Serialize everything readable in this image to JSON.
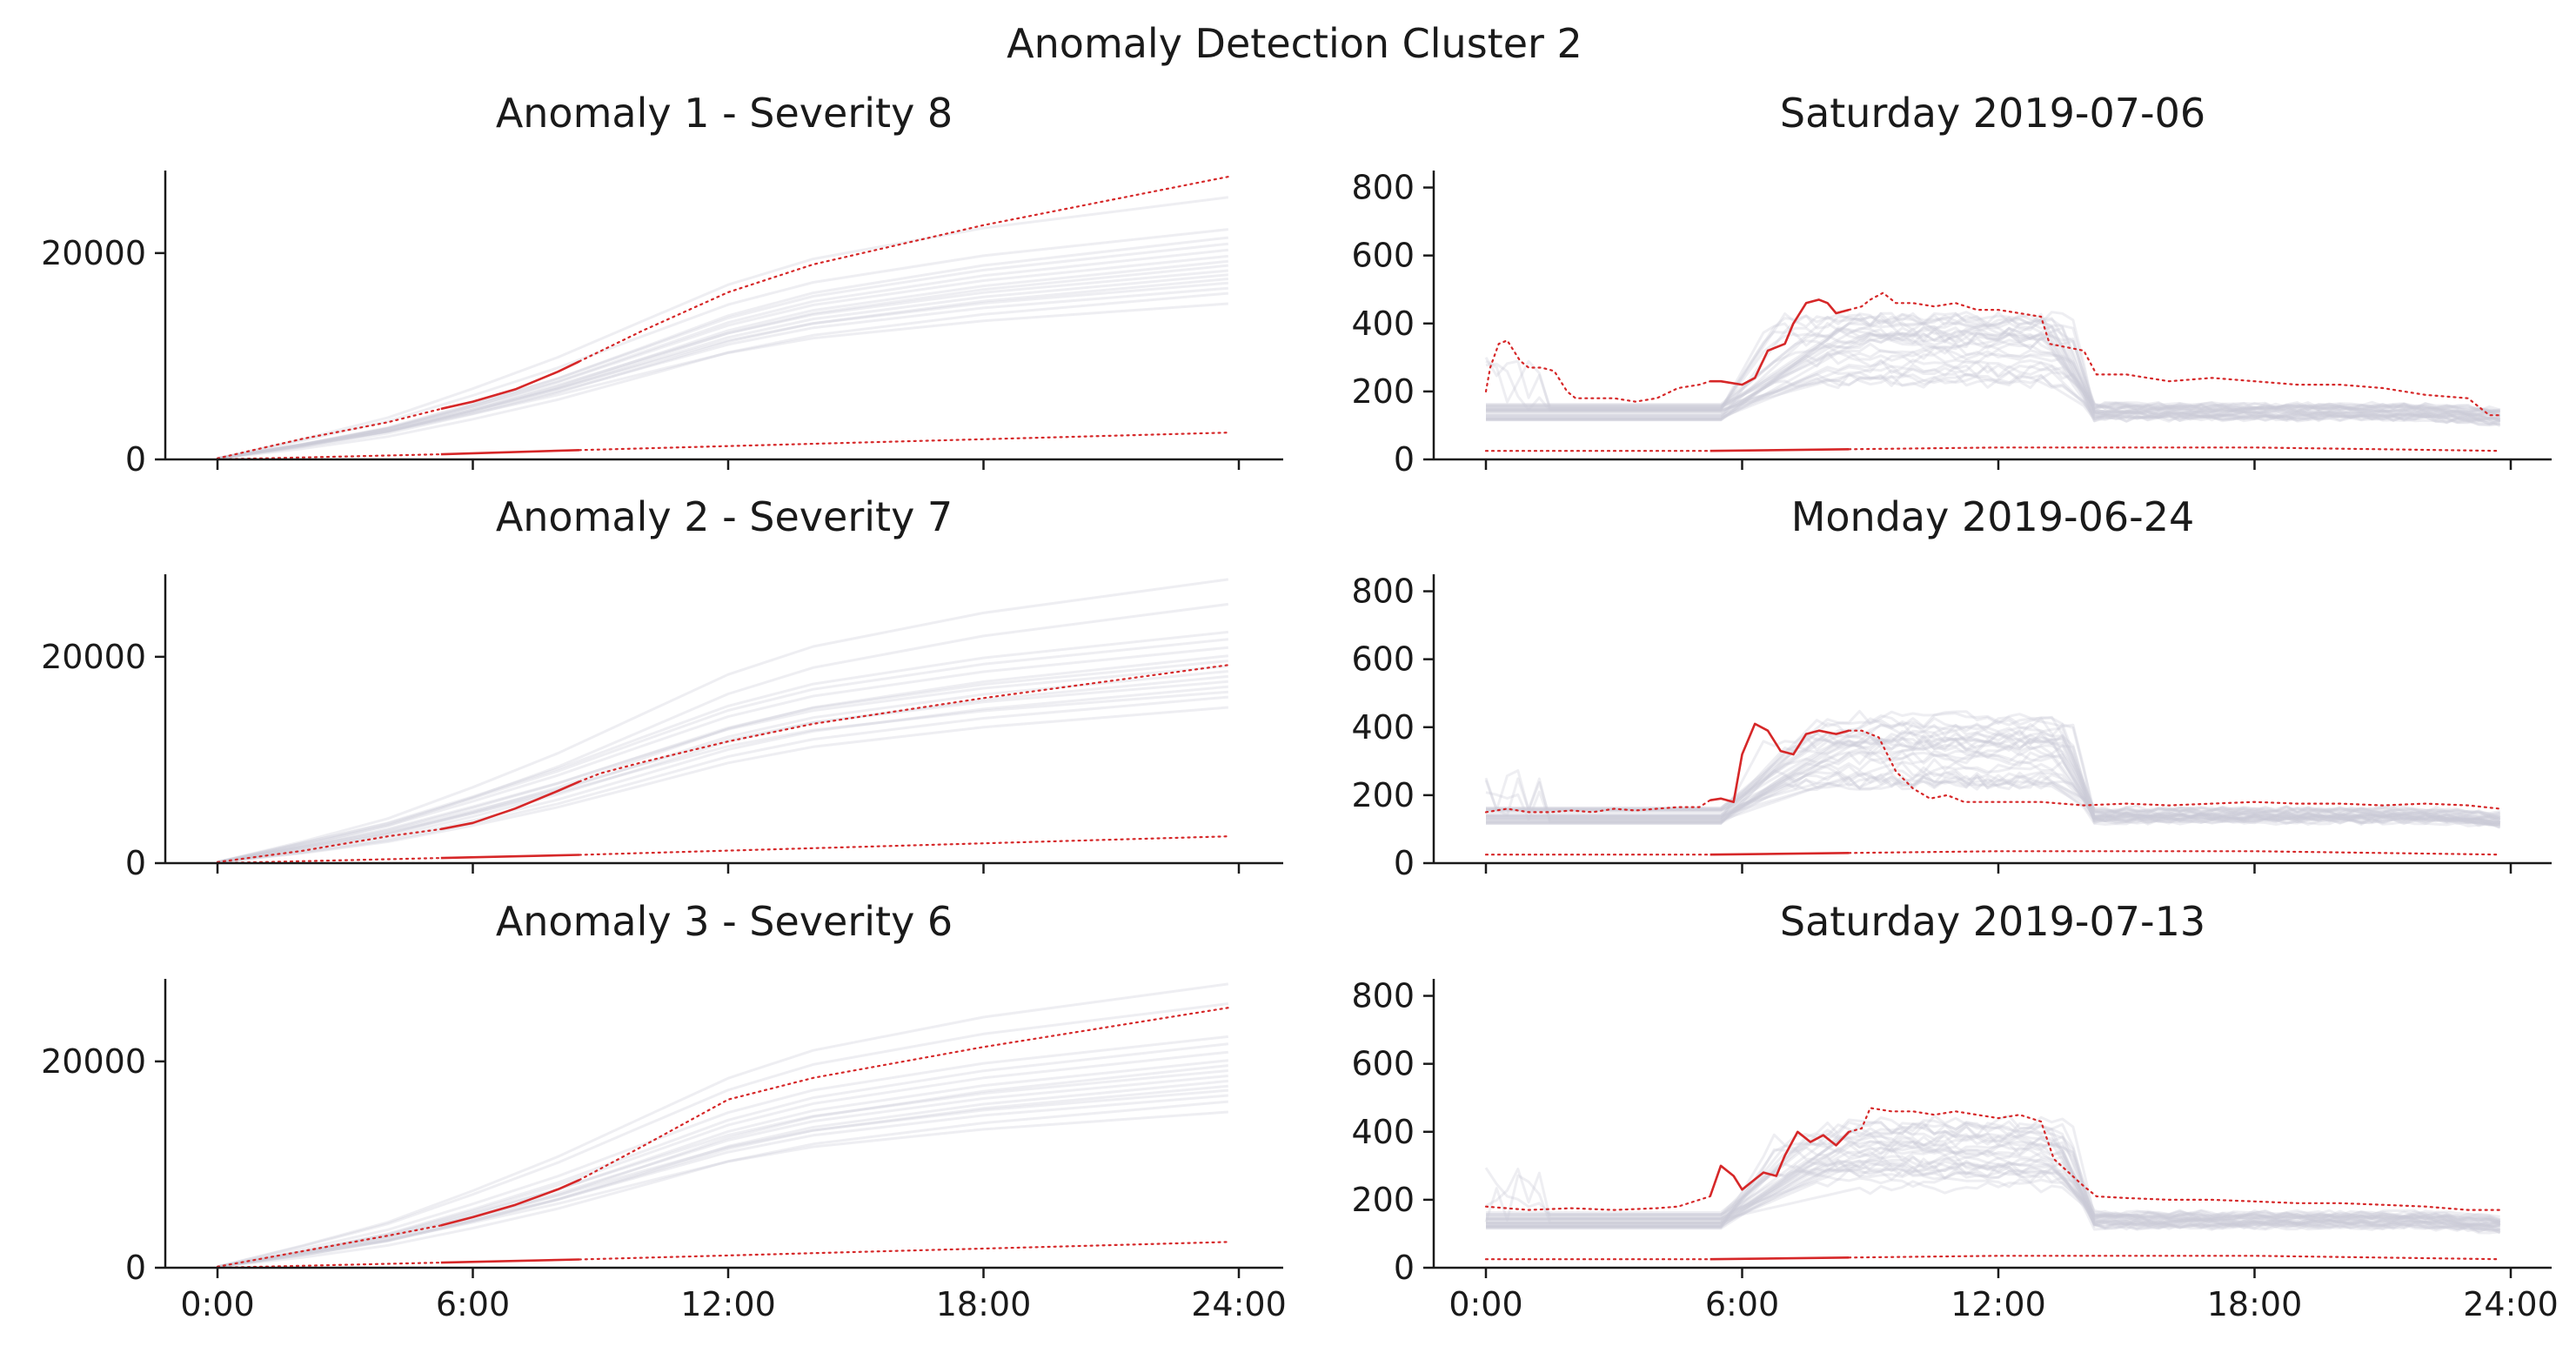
{
  "figure": {
    "suptitle": "Anomaly Detection Cluster 2",
    "colors": {
      "highlight": "#d62728",
      "background_lines": "#c9c9d6",
      "axis": "#1a1a1a"
    }
  },
  "chart_data": [
    {
      "type": "line",
      "kind": "cumulative",
      "title": "Anomaly 1 - Severity 8",
      "ylim": [
        0,
        28000
      ],
      "yticks": [
        0,
        20000
      ],
      "xlim": [
        0,
        24
      ],
      "xticks": [
        0,
        6,
        12,
        18,
        24
      ],
      "xticklabels": [
        "0:00",
        "6:00",
        "12:00",
        "18:00",
        "24:00"
      ],
      "show_xticklabels": false,
      "background_finals": [
        15000,
        16000,
        16500,
        17000,
        17400,
        17800,
        18200,
        18700,
        19100,
        19600,
        20200,
        20800,
        21400,
        22200,
        25300
      ],
      "upper": {
        "x": [
          0,
          2,
          4,
          5.25,
          6,
          7,
          8,
          8.5,
          10,
          12,
          14,
          18,
          23.75
        ],
        "y": [
          100,
          2000,
          3600,
          4900,
          5600,
          6800,
          8500,
          9500,
          12500,
          16200,
          18900,
          22700,
          27400
        ]
      },
      "upper_solid_range": [
        5.25,
        8.5
      ],
      "lower": {
        "x": [
          0,
          5.25,
          8.5,
          23.75
        ],
        "y": [
          0,
          500,
          900,
          2600
        ]
      },
      "lower_solid_range": [
        5.25,
        8.5
      ]
    },
    {
      "type": "line",
      "kind": "profile",
      "title": "Saturday 2019-07-06",
      "ylim": [
        0,
        850
      ],
      "yticks": [
        0,
        200,
        400,
        600,
        800
      ],
      "xlim": [
        0,
        24
      ],
      "xticks": [
        0,
        6,
        12,
        18,
        24
      ],
      "xticklabels": [
        "0:00",
        "6:00",
        "12:00",
        "18:00",
        "24:00"
      ],
      "show_xticklabels": false,
      "upper": {
        "x": [
          0,
          0.1,
          0.3,
          0.5,
          0.8,
          1.0,
          1.3,
          1.6,
          1.9,
          2.1,
          2.5,
          3,
          3.5,
          4,
          4.5,
          5,
          5.25,
          5.5,
          6,
          6.3,
          6.6,
          7,
          7.2,
          7.5,
          7.8,
          8,
          8.2,
          8.5,
          8.8,
          9,
          9.3,
          9.6,
          10,
          10.5,
          11,
          11.5,
          12,
          12.5,
          13,
          13.2,
          14,
          14.3,
          15,
          16,
          17,
          18,
          19,
          20,
          21,
          22,
          23,
          23.5,
          23.75
        ],
        "y": [
          200,
          270,
          340,
          350,
          290,
          270,
          270,
          260,
          200,
          180,
          180,
          180,
          170,
          180,
          210,
          220,
          230,
          230,
          220,
          240,
          320,
          340,
          400,
          460,
          470,
          460,
          430,
          440,
          450,
          470,
          490,
          460,
          460,
          450,
          460,
          440,
          440,
          430,
          420,
          340,
          320,
          250,
          250,
          230,
          240,
          230,
          220,
          220,
          210,
          190,
          180,
          130,
          130
        ]
      },
      "upper_solid_range": [
        5.25,
        8.5
      ],
      "lower": {
        "x": [
          0,
          5.25,
          8.5,
          12,
          18,
          23.75
        ],
        "y": [
          25,
          25,
          30,
          35,
          35,
          25
        ]
      },
      "lower_solid_range": [
        5.25,
        8.5
      ]
    },
    {
      "type": "line",
      "kind": "cumulative",
      "title": "Anomaly 2 - Severity 7",
      "ylim": [
        0,
        28000
      ],
      "yticks": [
        0,
        20000
      ],
      "xlim": [
        0,
        24
      ],
      "xticks": [
        0,
        6,
        12,
        18,
        24
      ],
      "xticklabels": [
        "0:00",
        "6:00",
        "12:00",
        "18:00",
        "24:00"
      ],
      "show_xticklabels": false,
      "background_finals": [
        15000,
        16000,
        16500,
        17000,
        17500,
        18000,
        18500,
        19000,
        19500,
        20000,
        20800,
        21600,
        22300,
        25000,
        27400
      ],
      "upper": {
        "x": [
          0,
          2,
          4,
          5.25,
          6,
          7,
          8,
          8.5,
          9,
          10,
          12,
          14,
          18,
          23.75
        ],
        "y": [
          100,
          1200,
          2600,
          3300,
          3900,
          5300,
          7000,
          7900,
          8700,
          9800,
          11800,
          13500,
          16000,
          19200
        ]
      },
      "upper_solid_range": [
        5.25,
        8.5
      ],
      "lower": {
        "x": [
          0,
          5.25,
          8.5,
          23.75
        ],
        "y": [
          0,
          500,
          800,
          2600
        ]
      },
      "lower_solid_range": [
        5.25,
        8.5
      ]
    },
    {
      "type": "line",
      "kind": "profile",
      "title": "Monday 2019-06-24",
      "ylim": [
        0,
        850
      ],
      "yticks": [
        0,
        200,
        400,
        600,
        800
      ],
      "xlim": [
        0,
        24
      ],
      "xticks": [
        0,
        6,
        12,
        18,
        24
      ],
      "xticklabels": [
        "0:00",
        "6:00",
        "12:00",
        "18:00",
        "24:00"
      ],
      "show_xticklabels": false,
      "upper": {
        "x": [
          0,
          0.5,
          1,
          1.5,
          2,
          2.5,
          3,
          3.5,
          4,
          4.5,
          5,
          5.25,
          5.5,
          5.8,
          6,
          6.3,
          6.6,
          6.9,
          7.2,
          7.5,
          7.8,
          8.2,
          8.5,
          8.8,
          9.2,
          9.6,
          10,
          10.4,
          10.8,
          11.2,
          12,
          13,
          14,
          15,
          16,
          17,
          18,
          19,
          20,
          21,
          22,
          23,
          23.75
        ],
        "y": [
          150,
          160,
          150,
          150,
          155,
          150,
          160,
          155,
          160,
          165,
          165,
          185,
          190,
          180,
          320,
          410,
          390,
          330,
          320,
          380,
          390,
          380,
          390,
          390,
          370,
          270,
          220,
          190,
          200,
          180,
          180,
          180,
          170,
          175,
          170,
          175,
          180,
          175,
          175,
          170,
          175,
          170,
          160
        ]
      },
      "upper_solid_range": [
        5.25,
        8.5
      ],
      "lower": {
        "x": [
          0,
          5.25,
          8.5,
          12,
          18,
          23.75
        ],
        "y": [
          25,
          25,
          30,
          35,
          35,
          25
        ]
      },
      "lower_solid_range": [
        5.25,
        8.5
      ]
    },
    {
      "type": "line",
      "kind": "cumulative",
      "title": "Anomaly 3 - Severity 6",
      "ylim": [
        0,
        28000
      ],
      "yticks": [
        0,
        20000
      ],
      "xlim": [
        0,
        24
      ],
      "xticks": [
        0,
        6,
        12,
        18,
        24
      ],
      "xticklabels": [
        "0:00",
        "6:00",
        "12:00",
        "18:00",
        "24:00"
      ],
      "show_xticklabels": true,
      "background_finals": [
        15000,
        16000,
        16600,
        17100,
        17500,
        18000,
        18500,
        19000,
        19500,
        20000,
        20800,
        21600,
        22300,
        25500,
        27400
      ],
      "upper": {
        "x": [
          0,
          2,
          4,
          5.25,
          6,
          7,
          8,
          8.5,
          10,
          12,
          14,
          18,
          23.75
        ],
        "y": [
          100,
          1600,
          3100,
          4100,
          4900,
          6100,
          7600,
          8500,
          11800,
          16300,
          18400,
          21400,
          25200
        ]
      },
      "upper_solid_range": [
        5.25,
        8.5
      ],
      "lower": {
        "x": [
          0,
          5.25,
          8.5,
          23.75
        ],
        "y": [
          0,
          500,
          800,
          2500
        ]
      },
      "lower_solid_range": [
        5.25,
        8.5
      ]
    },
    {
      "type": "line",
      "kind": "profile",
      "title": "Saturday 2019-07-13",
      "ylim": [
        0,
        850
      ],
      "yticks": [
        0,
        200,
        400,
        600,
        800
      ],
      "xlim": [
        0,
        24
      ],
      "xticks": [
        0,
        6,
        12,
        18,
        24
      ],
      "xticklabels": [
        "0:00",
        "6:00",
        "12:00",
        "18:00",
        "24:00"
      ],
      "show_xticklabels": true,
      "upper": {
        "x": [
          0,
          1,
          2,
          3,
          4,
          4.5,
          5,
          5.25,
          5.5,
          5.8,
          6,
          6.3,
          6.5,
          6.8,
          7,
          7.3,
          7.6,
          7.9,
          8.2,
          8.5,
          8.8,
          9,
          9.5,
          10,
          10.5,
          11,
          11.5,
          12,
          12.5,
          13,
          13.3,
          14,
          14.3,
          15,
          16,
          17,
          18,
          19,
          20,
          21,
          22,
          23,
          23.75
        ],
        "y": [
          180,
          170,
          175,
          170,
          175,
          180,
          200,
          210,
          300,
          270,
          230,
          260,
          280,
          270,
          330,
          400,
          370,
          390,
          360,
          400,
          410,
          470,
          460,
          460,
          450,
          460,
          450,
          440,
          450,
          430,
          320,
          240,
          210,
          205,
          200,
          200,
          195,
          190,
          190,
          185,
          180,
          170,
          170
        ]
      },
      "upper_solid_range": [
        5.25,
        8.5
      ],
      "lower": {
        "x": [
          0,
          5.25,
          8.5,
          12,
          18,
          23.75
        ],
        "y": [
          25,
          25,
          30,
          35,
          35,
          25
        ]
      },
      "lower_solid_range": [
        5.25,
        8.5
      ]
    }
  ]
}
